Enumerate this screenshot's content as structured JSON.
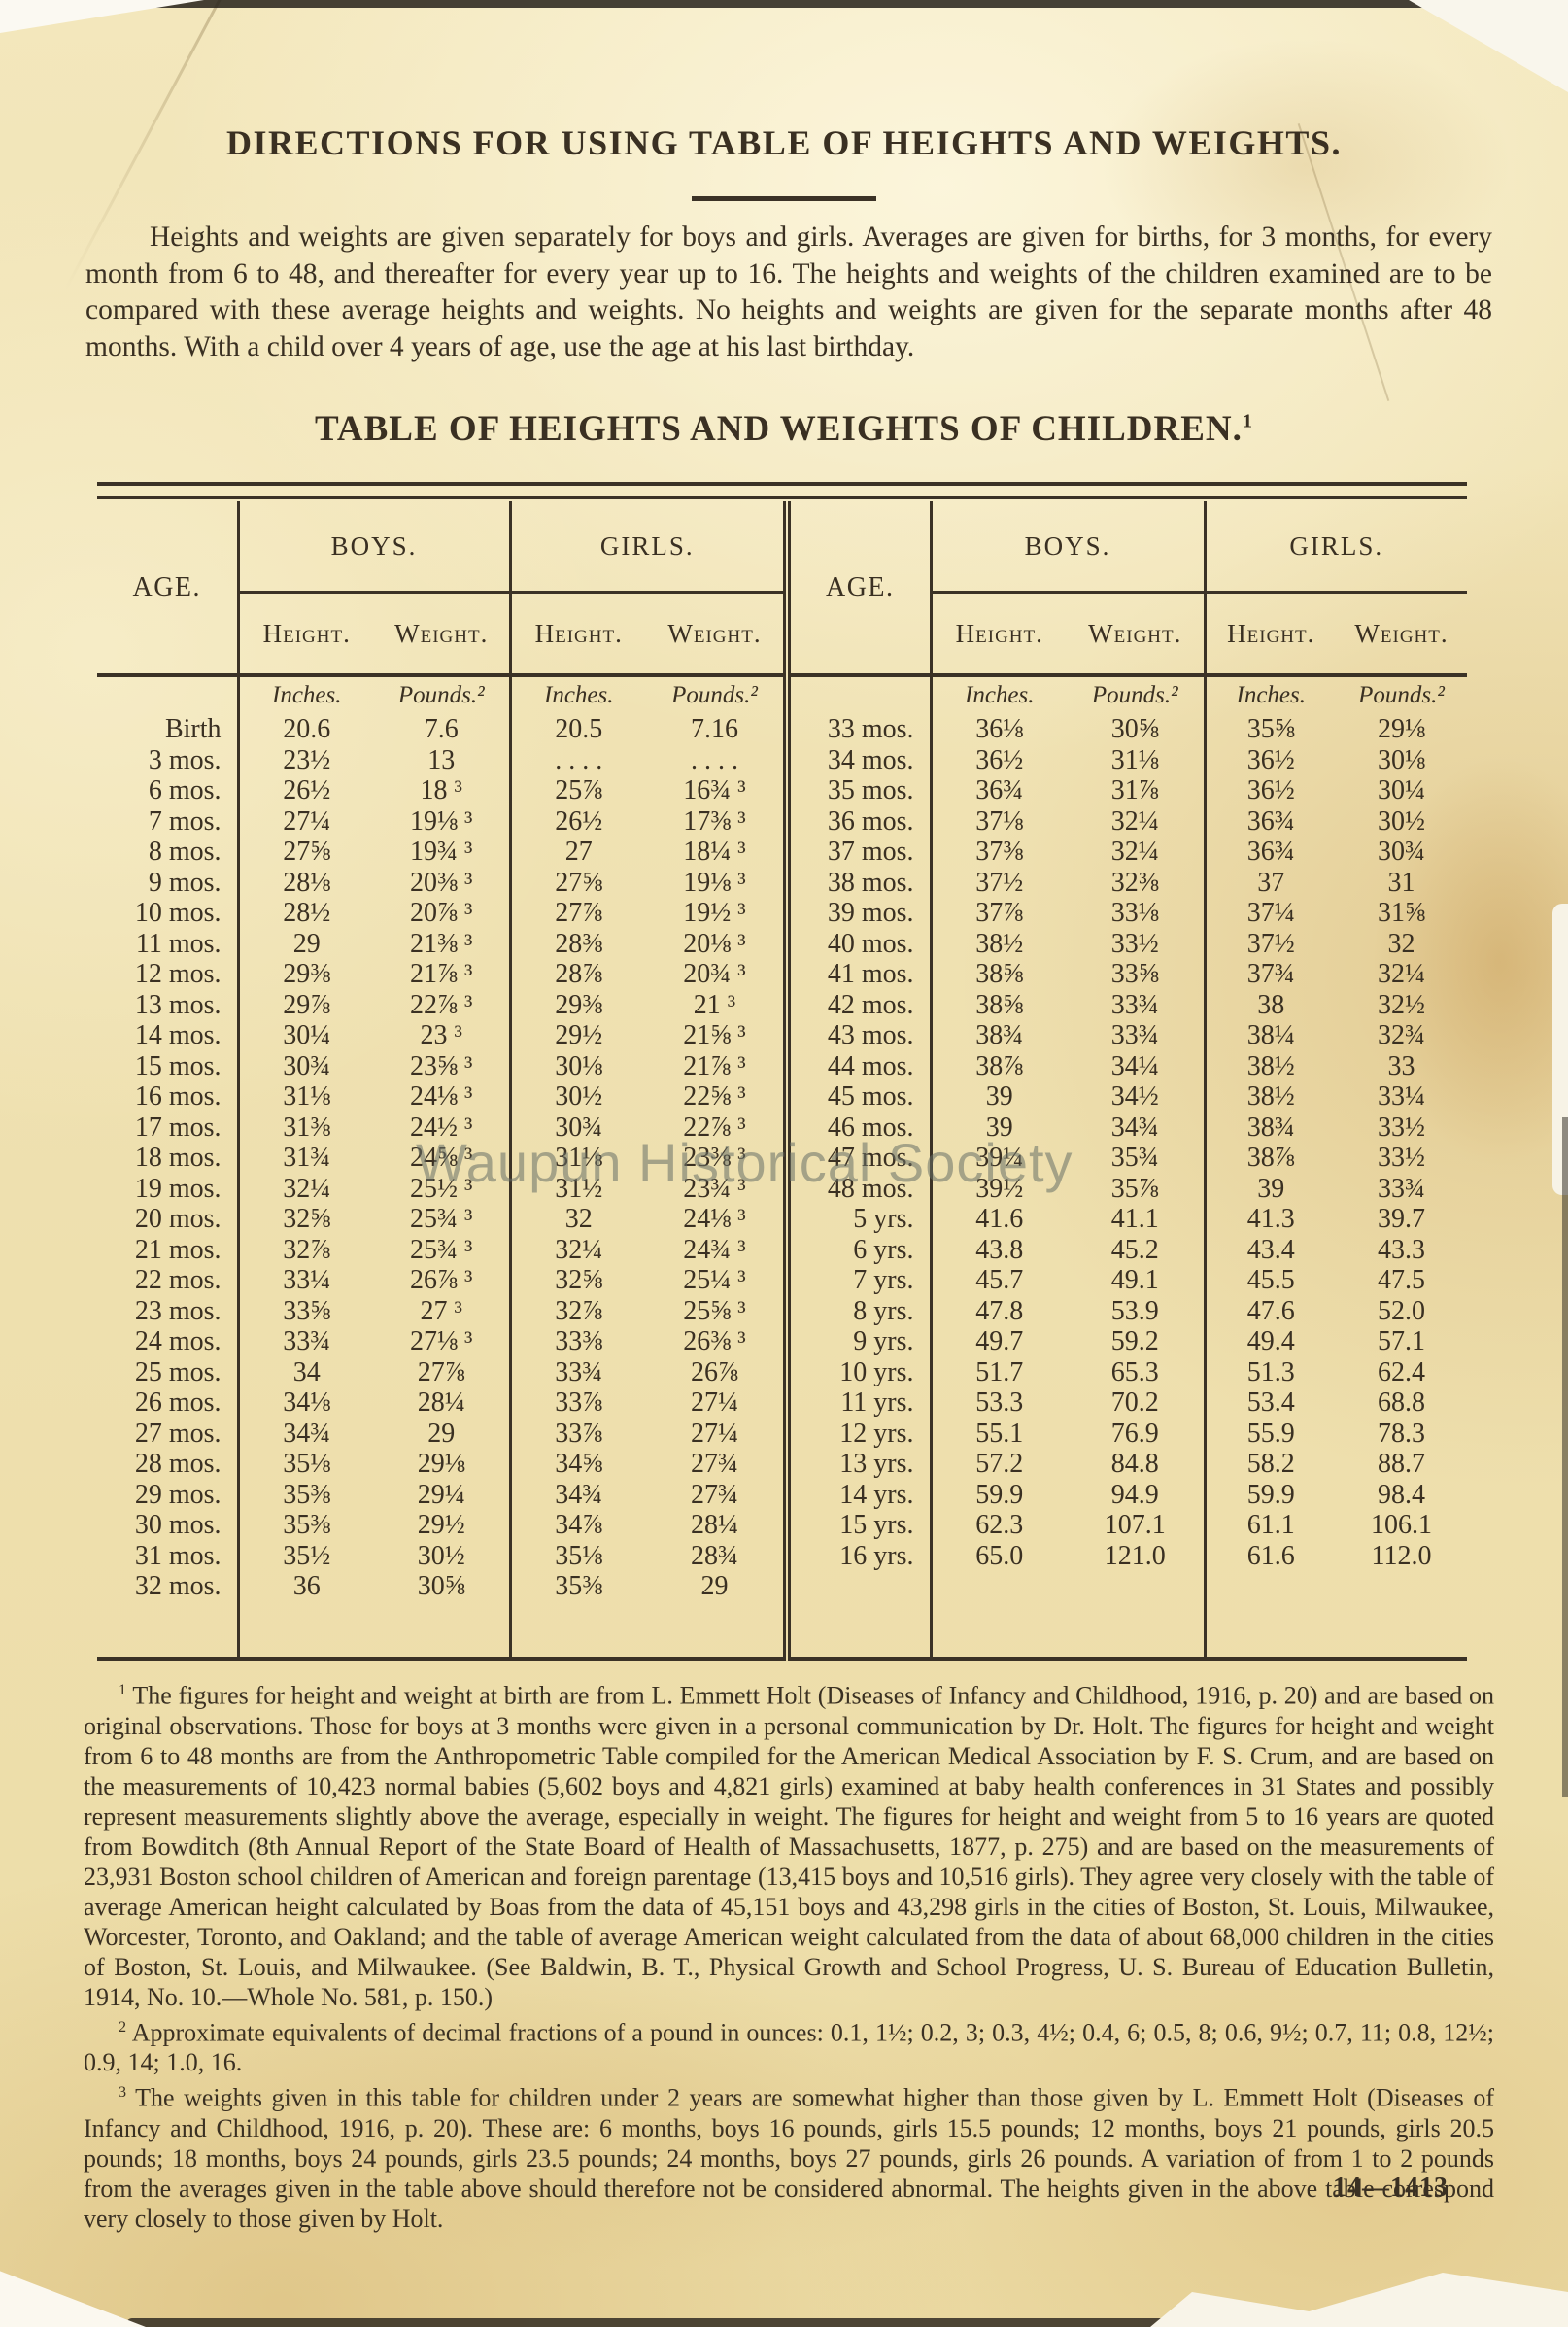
{
  "page": {
    "directions_title": "DIRECTIONS FOR USING TABLE OF HEIGHTS AND WEIGHTS.",
    "directions_body": "Heights and weights are given separately for boys and girls.  Averages are given for births, for 3 months, for every month from 6 to 48, and thereafter for every year up to 16.  The heights and weights of the children examined are to be compared with these average heights and weights.  No heights and weights are given for the separate months after 48 months.  With a child over 4 years of age, use the age at his last birthday.",
    "watermark": "Waupun Historical Society",
    "form_number": "14—1413"
  },
  "table": {
    "title": "TABLE OF HEIGHTS AND WEIGHTS OF CHILDREN.",
    "title_footnote_marker": "1",
    "headers": {
      "age": "AGE.",
      "boys": "BOYS.",
      "girls": "GIRLS.",
      "height": "Height.",
      "weight": "Weight.",
      "inches": "Inches.",
      "pounds": "Pounds.²"
    },
    "left_rows": [
      [
        "Birth",
        "20.6",
        "7.6",
        "20.5",
        "7.16"
      ],
      [
        "3 mos.",
        "23½",
        "13",
        ". . . .",
        ". . . ."
      ],
      [
        "6 mos.",
        "26½",
        "18 ³",
        "25⅞",
        "16¾ ³"
      ],
      [
        "7 mos.",
        "27¼",
        "19⅛ ³",
        "26½",
        "17⅜ ³"
      ],
      [
        "8 mos.",
        "27⅝",
        "19¾ ³",
        "27",
        "18¼ ³"
      ],
      [
        "9 mos.",
        "28⅛",
        "20⅜ ³",
        "27⅝",
        "19⅛ ³"
      ],
      [
        "10 mos.",
        "28½",
        "20⅞ ³",
        "27⅞",
        "19½ ³"
      ],
      [
        "11 mos.",
        "29",
        "21⅜ ³",
        "28⅜",
        "20⅛ ³"
      ],
      [
        "12 mos.",
        "29⅜",
        "21⅞ ³",
        "28⅞",
        "20¾ ³"
      ],
      [
        "13 mos.",
        "29⅞",
        "22⅞ ³",
        "29⅜",
        "21 ³"
      ],
      [
        "14 mos.",
        "30¼",
        "23 ³",
        "29½",
        "21⅝ ³"
      ],
      [
        "15 mos.",
        "30¾",
        "23⅝ ³",
        "30⅛",
        "21⅞ ³"
      ],
      [
        "16 mos.",
        "31⅛",
        "24⅛ ³",
        "30½",
        "22⅝ ³"
      ],
      [
        "17 mos.",
        "31⅜",
        "24½ ³",
        "30¾",
        "22⅞ ³"
      ],
      [
        "18 mos.",
        "31¾",
        "24⅝ ³",
        "31⅛",
        "23⅜ ³"
      ],
      [
        "19 mos.",
        "32¼",
        "25½ ³",
        "31½",
        "23¾ ³"
      ],
      [
        "20 mos.",
        "32⅝",
        "25¾ ³",
        "32",
        "24⅛ ³"
      ],
      [
        "21 mos.",
        "32⅞",
        "25¾ ³",
        "32¼",
        "24¾ ³"
      ],
      [
        "22 mos.",
        "33¼",
        "26⅞ ³",
        "32⅝",
        "25¼ ³"
      ],
      [
        "23 mos.",
        "33⅝",
        "27 ³",
        "32⅞",
        "25⅝ ³"
      ],
      [
        "24 mos.",
        "33¾",
        "27⅛ ³",
        "33⅜",
        "26⅜ ³"
      ],
      [
        "25 mos.",
        "34",
        "27⅞",
        "33¾",
        "26⅞"
      ],
      [
        "26 mos.",
        "34⅛",
        "28¼",
        "33⅞",
        "27¼"
      ],
      [
        "27 mos.",
        "34¾",
        "29",
        "33⅞",
        "27¼"
      ],
      [
        "28 mos.",
        "35⅛",
        "29⅛",
        "34⅝",
        "27¾"
      ],
      [
        "29 mos.",
        "35⅜",
        "29¼",
        "34¾",
        "27¾"
      ],
      [
        "30 mos.",
        "35⅜",
        "29½",
        "34⅞",
        "28¼"
      ],
      [
        "31 mos.",
        "35½",
        "30½",
        "35⅛",
        "28¾"
      ],
      [
        "32 mos.",
        "36",
        "30⅝",
        "35⅜",
        "29"
      ]
    ],
    "right_rows": [
      [
        "33 mos.",
        "36⅛",
        "30⅝",
        "35⅝",
        "29⅛"
      ],
      [
        "34 mos.",
        "36½",
        "31⅛",
        "36½",
        "30⅛"
      ],
      [
        "35 mos.",
        "36¾",
        "31⅞",
        "36½",
        "30¼"
      ],
      [
        "36 mos.",
        "37⅛",
        "32¼",
        "36¾",
        "30½"
      ],
      [
        "37 mos.",
        "37⅜",
        "32¼",
        "36¾",
        "30¾"
      ],
      [
        "38 mos.",
        "37½",
        "32⅜",
        "37",
        "31"
      ],
      [
        "39 mos.",
        "37⅞",
        "33⅛",
        "37¼",
        "31⅝"
      ],
      [
        "40 mos.",
        "38½",
        "33½",
        "37½",
        "32"
      ],
      [
        "41 mos.",
        "38⅝",
        "33⅝",
        "37¾",
        "32¼"
      ],
      [
        "42 mos.",
        "38⅝",
        "33¾",
        "38",
        "32½"
      ],
      [
        "43 mos.",
        "38¾",
        "33¾",
        "38¼",
        "32¾"
      ],
      [
        "44 mos.",
        "38⅞",
        "34¼",
        "38½",
        "33"
      ],
      [
        "45 mos.",
        "39",
        "34½",
        "38½",
        "33¼"
      ],
      [
        "46 mos.",
        "39",
        "34¾",
        "38¾",
        "33½"
      ],
      [
        "47 mos.",
        "39¼",
        "35¾",
        "38⅞",
        "33½"
      ],
      [
        "48 mos.",
        "39½",
        "35⅞",
        "39",
        "33¾"
      ],
      [
        "5 yrs.",
        "41.6",
        "41.1",
        "41.3",
        "39.7"
      ],
      [
        "6 yrs.",
        "43.8",
        "45.2",
        "43.4",
        "43.3"
      ],
      [
        "7 yrs.",
        "45.7",
        "49.1",
        "45.5",
        "47.5"
      ],
      [
        "8 yrs.",
        "47.8",
        "53.9",
        "47.6",
        "52.0"
      ],
      [
        "9 yrs.",
        "49.7",
        "59.2",
        "49.4",
        "57.1"
      ],
      [
        "10 yrs.",
        "51.7",
        "65.3",
        "51.3",
        "62.4"
      ],
      [
        "11 yrs.",
        "53.3",
        "70.2",
        "53.4",
        "68.8"
      ],
      [
        "12 yrs.",
        "55.1",
        "76.9",
        "55.9",
        "78.3"
      ],
      [
        "13 yrs.",
        "57.2",
        "84.8",
        "58.2",
        "88.7"
      ],
      [
        "14 yrs.",
        "59.9",
        "94.9",
        "59.9",
        "98.4"
      ],
      [
        "15 yrs.",
        "62.3",
        "107.1",
        "61.1",
        "106.1"
      ],
      [
        "16 yrs.",
        "65.0",
        "121.0",
        "61.6",
        "112.0"
      ]
    ]
  },
  "footnotes": [
    {
      "marker": "1",
      "text": " The figures for height and weight at birth are from L.  Emmett Holt (Diseases of Infancy and Childhood, 1916, p. 20) and are based on original observations.  Those for boys at 3 months were given in a personal communication by Dr. Holt.  The figures for height and weight from 6 to 48 months are from the Anthropometric Table compiled for the American Medical Association by F. S. Crum, and are based on the measurements of 10,423 normal babies (5,602 boys and 4,821 girls) examined at baby health conferences in 31 States and possibly represent measurements slightly above the average, especially in weight.  The figures for height and weight from 5 to 16 years are quoted from Bowditch (8th Annual Report of the State Board of Health of Massachusetts, 1877, p. 275) and are based on the measurements of 23,931 Boston school children of American and foreign parentage (13,415 boys and 10,516 girls).  They agree very closely with the table of average American height calculated by Boas from the data of 45,151 boys and 43,298 girls in the cities of Boston, St. Louis, Milwaukee, Worcester, Toronto, and Oakland; and the table of average American weight calculated from the data of about 68,000 children in the cities of Boston, St. Louis, and Milwaukee.  (See Baldwin, B. T., Physical Growth and School Progress, U. S. Bureau of Education Bulletin, 1914, No. 10.—Whole No. 581, p. 150.)"
    },
    {
      "marker": "2",
      "text": " Approximate equivalents of decimal fractions of a pound in ounces: 0.1, 1½; 0.2, 3; 0.3, 4½; 0.4, 6; 0.5, 8; 0.6, 9½; 0.7, 11; 0.8, 12½; 0.9, 14; 1.0, 16."
    },
    {
      "marker": "3",
      "text": " The weights given in this table for children under 2 years are somewhat higher than those given by L. Emmett Holt (Diseases of Infancy and Childhood, 1916, p. 20).  These are: 6 months, boys 16 pounds, girls 15.5 pounds; 12 months, boys 21 pounds, girls 20.5 pounds; 18 months, boys 24 pounds, girls 23.5 pounds; 24 months, boys 27 pounds, girls 26 pounds.  A variation of from 1 to 2 pounds from the averages given in the table above should therefore not be considered abnormal.  The heights given in the above table correspond very closely to those given by Holt."
    }
  ],
  "colors": {
    "paper": "#ecdfae",
    "ink": "#3a3022",
    "rule": "#3b3226",
    "watermark_gray": "#687066"
  }
}
